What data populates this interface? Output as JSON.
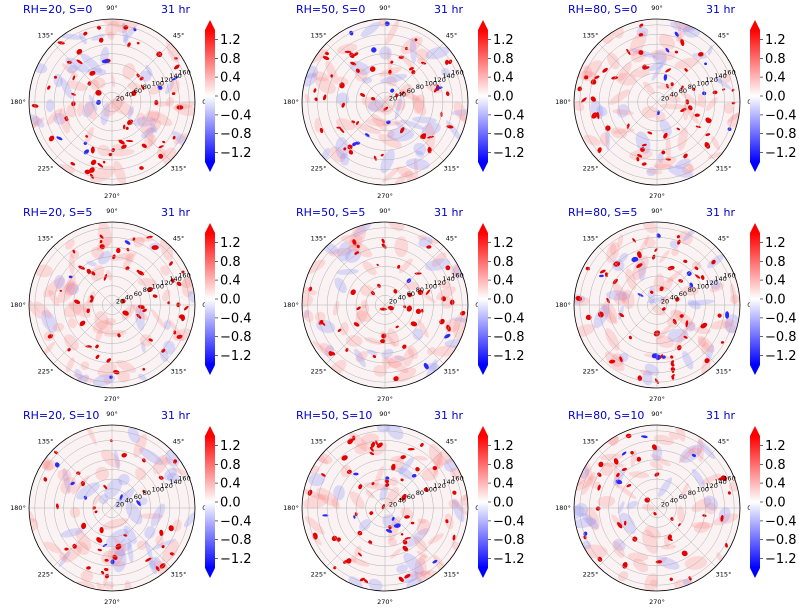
{
  "chart_data": {
    "type": "polar-filled-contour-grid",
    "time_label": "31 hr",
    "angle_labels": [
      "0°",
      "45°",
      "90°",
      "135°",
      "180°",
      "225°",
      "270°",
      "315°"
    ],
    "radial_ticks": [
      "20",
      "40",
      "60",
      "80",
      "100",
      "120",
      "140",
      "160"
    ],
    "colorbar": {
      "colormap": "bwr",
      "tick_labels": [
        "1.2",
        "0.8",
        "0.4",
        "0.0",
        "−0.4",
        "−0.8",
        "−1.2"
      ],
      "tick_values": [
        1.2,
        0.8,
        0.4,
        0.0,
        -0.4,
        -0.8,
        -1.2
      ],
      "range": [
        -1.4,
        1.4
      ],
      "extend": "both"
    },
    "panels": [
      {
        "title": "RH=20, S=0"
      },
      {
        "title": "RH=50, S=0"
      },
      {
        "title": "RH=80, S=0"
      },
      {
        "title": "RH=20, S=5"
      },
      {
        "title": "RH=50, S=5"
      },
      {
        "title": "RH=80, S=5"
      },
      {
        "title": "RH=20, S=10"
      },
      {
        "title": "RH=50, S=10"
      },
      {
        "title": "RH=80, S=10"
      }
    ]
  }
}
